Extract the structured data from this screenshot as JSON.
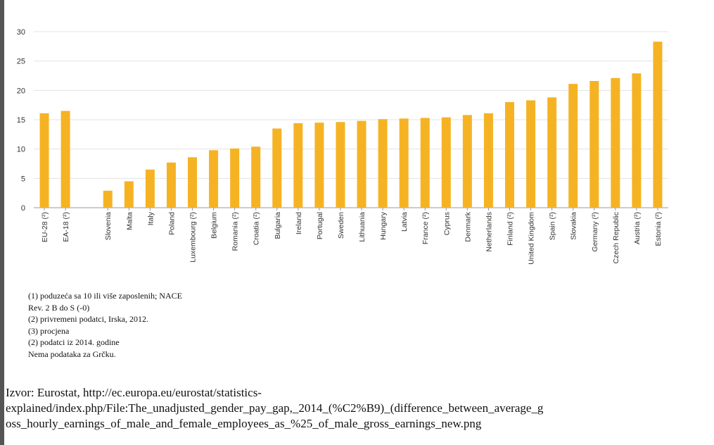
{
  "chart_data": {
    "type": "bar",
    "categories": [
      "EU-28 (²)",
      "EA-18 (²)",
      null,
      "Slovenia",
      "Malta",
      "Italy",
      "Poland",
      "Luxembourg (²)",
      "Belgium",
      "Romania (²)",
      "Croatia (²)",
      "Bulgaria",
      "Ireland",
      "Portugal",
      "Sweden",
      "Lithuania",
      "Hungary",
      "Latvia",
      "France (²)",
      "Cyprus",
      "Denmark",
      "Netherlands",
      "Finland (²)",
      "United Kingdom",
      "Spain (²)",
      "Slovakia",
      "Germany (²)",
      "Czech Republic",
      "Austria (²)",
      "Estonia (²)"
    ],
    "values": [
      16.1,
      16.5,
      null,
      2.9,
      4.5,
      6.5,
      7.7,
      8.6,
      9.8,
      10.1,
      10.4,
      13.5,
      14.4,
      14.5,
      14.6,
      14.8,
      15.1,
      15.2,
      15.3,
      15.4,
      15.8,
      16.1,
      18.0,
      18.3,
      18.8,
      21.1,
      21.6,
      22.1,
      22.9,
      28.3
    ],
    "color": "#f5b324",
    "ylim": [
      0,
      30
    ],
    "yticks": [
      0,
      5,
      10,
      15,
      20,
      25,
      30
    ],
    "grid": true
  },
  "notes": [
    "(1) poduzeća sa 10 ili više zaposlenih;  NACE",
    "Rev. 2 B do S (-0)",
    "(2) privremeni podatci, Irska, 2012.",
    "(3) procjena",
    "(2) podatci iz 2014. godine",
    "Nema podataka za Grčku."
  ],
  "source": [
    "Izvor: Eurostat, http://ec.europa.eu/eurostat/statistics-",
    "explained/index.php/File:The_unadjusted_gender_pay_gap,_2014_(%C2%B9)_(difference_between_average_g",
    "oss_hourly_earnings_of_male_and_female_employees_as_%25_of_male_gross_earnings_new.png"
  ]
}
